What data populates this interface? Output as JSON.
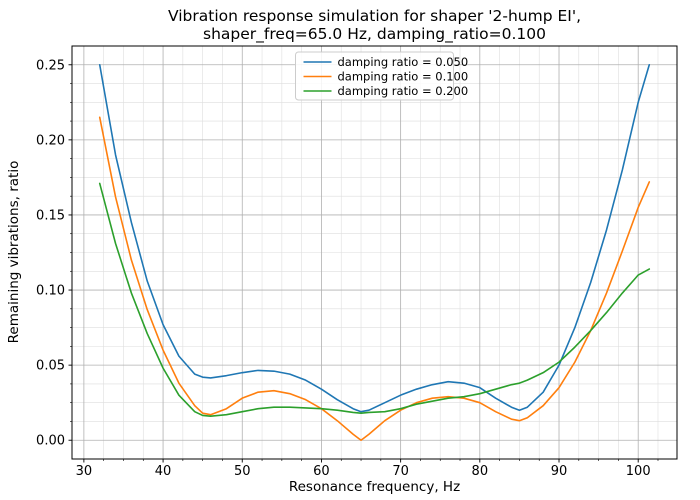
{
  "figure": {
    "title_line1": "Vibration response simulation for shaper '2-hump EI',",
    "title_line2": "shaper_freq=65.0 Hz, damping_ratio=0.100"
  },
  "chart_data": {
    "type": "line",
    "title": "Vibration response simulation for shaper '2-hump EI', shaper_freq=65.0 Hz, damping_ratio=0.100",
    "xlabel": "Resonance frequency, Hz",
    "ylabel": "Remaining vibrations, ratio",
    "xlim": [
      28.5,
      104.9
    ],
    "ylim": [
      -0.0125,
      0.2625
    ],
    "xticks": [
      30,
      40,
      50,
      60,
      70,
      80,
      90,
      100
    ],
    "yticks": [
      0,
      0.05,
      0.1,
      0.15,
      0.2,
      0.25
    ],
    "grid": "both",
    "legend_position": "upper center",
    "x": [
      32,
      34,
      36,
      38,
      40,
      42,
      44,
      45,
      46,
      48,
      50,
      52,
      54,
      56,
      58,
      60,
      62,
      64,
      65,
      66,
      68,
      70,
      72,
      74,
      76,
      78,
      80,
      82,
      84,
      85,
      86,
      88,
      90,
      92,
      94,
      96,
      98,
      100,
      101.4
    ],
    "series": [
      {
        "name": "damping ratio = 0.050",
        "color": "#1f77b4",
        "values": [
          0.25,
          0.19,
          0.145,
          0.106,
          0.077,
          0.056,
          0.044,
          0.042,
          0.0415,
          0.043,
          0.045,
          0.0465,
          0.046,
          0.044,
          0.04,
          0.034,
          0.027,
          0.021,
          0.019,
          0.02,
          0.025,
          0.03,
          0.034,
          0.037,
          0.039,
          0.038,
          0.035,
          0.028,
          0.022,
          0.02,
          0.022,
          0.032,
          0.05,
          0.075,
          0.105,
          0.14,
          0.18,
          0.225,
          0.25
        ]
      },
      {
        "name": "damping ratio = 0.100",
        "color": "#ff7f0e",
        "values": [
          0.215,
          0.162,
          0.12,
          0.087,
          0.06,
          0.038,
          0.023,
          0.018,
          0.017,
          0.021,
          0.028,
          0.032,
          0.033,
          0.031,
          0.027,
          0.021,
          0.013,
          0.004,
          0.0,
          0.004,
          0.013,
          0.02,
          0.025,
          0.028,
          0.029,
          0.028,
          0.025,
          0.019,
          0.014,
          0.013,
          0.015,
          0.023,
          0.035,
          0.052,
          0.073,
          0.098,
          0.126,
          0.155,
          0.172
        ]
      },
      {
        "name": "damping ratio = 0.200",
        "color": "#2ca02c",
        "values": [
          0.171,
          0.131,
          0.098,
          0.071,
          0.048,
          0.03,
          0.019,
          0.0165,
          0.016,
          0.017,
          0.019,
          0.021,
          0.022,
          0.022,
          0.0215,
          0.021,
          0.02,
          0.0185,
          0.018,
          0.0185,
          0.019,
          0.021,
          0.024,
          0.026,
          0.028,
          0.029,
          0.031,
          0.034,
          0.037,
          0.038,
          0.04,
          0.045,
          0.052,
          0.062,
          0.073,
          0.085,
          0.098,
          0.11,
          0.114
        ]
      }
    ]
  }
}
